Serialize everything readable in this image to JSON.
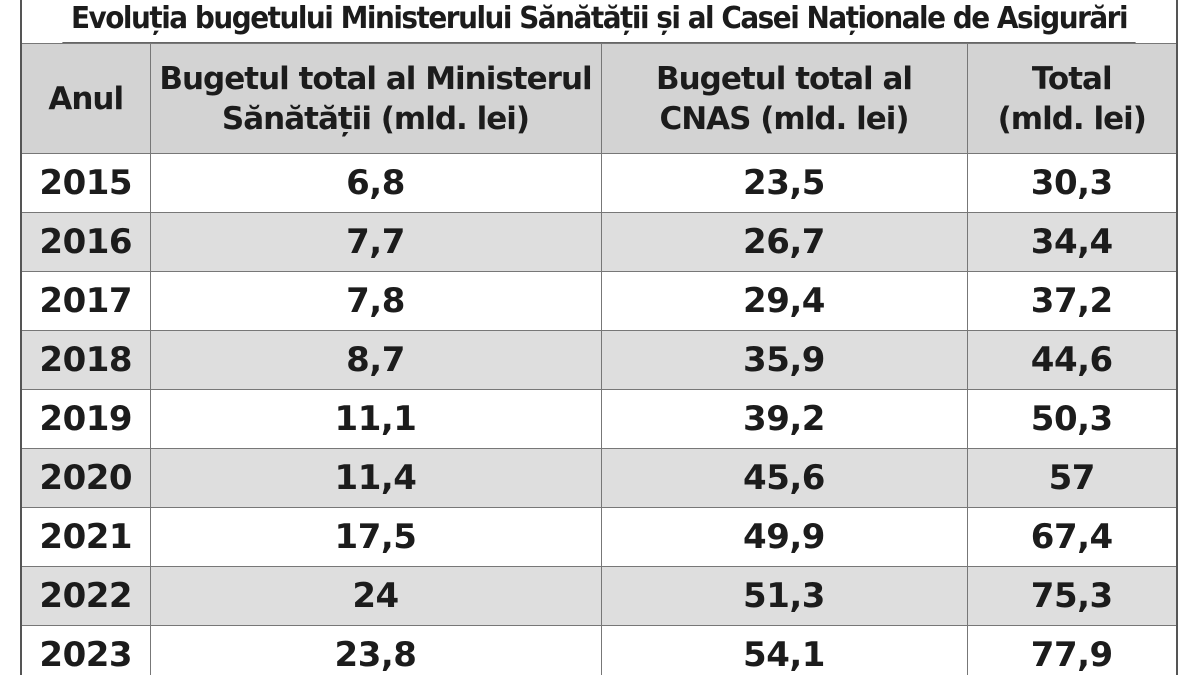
{
  "title": "Evoluția bugetului Ministerului Sănătății și al Casei Naționale de Asigurări",
  "headers": {
    "year": "Anul",
    "ministry_line1": "Bugetul total al Ministerul",
    "ministry_line2": "Sănătății (mld. lei)",
    "cnas_line1": "Bugetul total al",
    "cnas_line2": "CNAS (mld. lei)",
    "total_line1": "Total",
    "total_line2": "(mld. lei)"
  },
  "rows": [
    {
      "year": "2015",
      "ministry": "6,8",
      "cnas": "23,5",
      "total": "30,3"
    },
    {
      "year": "2016",
      "ministry": "7,7",
      "cnas": "26,7",
      "total": "34,4"
    },
    {
      "year": "2017",
      "ministry": "7,8",
      "cnas": "29,4",
      "total": "37,2"
    },
    {
      "year": "2018",
      "ministry": "8,7",
      "cnas": "35,9",
      "total": "44,6"
    },
    {
      "year": "2019",
      "ministry": "11,1",
      "cnas": "39,2",
      "total": "50,3"
    },
    {
      "year": "2020",
      "ministry": "11,4",
      "cnas": "45,6",
      "total": "57"
    },
    {
      "year": "2021",
      "ministry": "17,5",
      "cnas": "49,9",
      "total": "67,4"
    },
    {
      "year": "2022",
      "ministry": "24",
      "cnas": "51,3",
      "total": "75,3"
    },
    {
      "year": "2023",
      "ministry": "23,8",
      "cnas": "54,1",
      "total": "77,9"
    }
  ]
}
